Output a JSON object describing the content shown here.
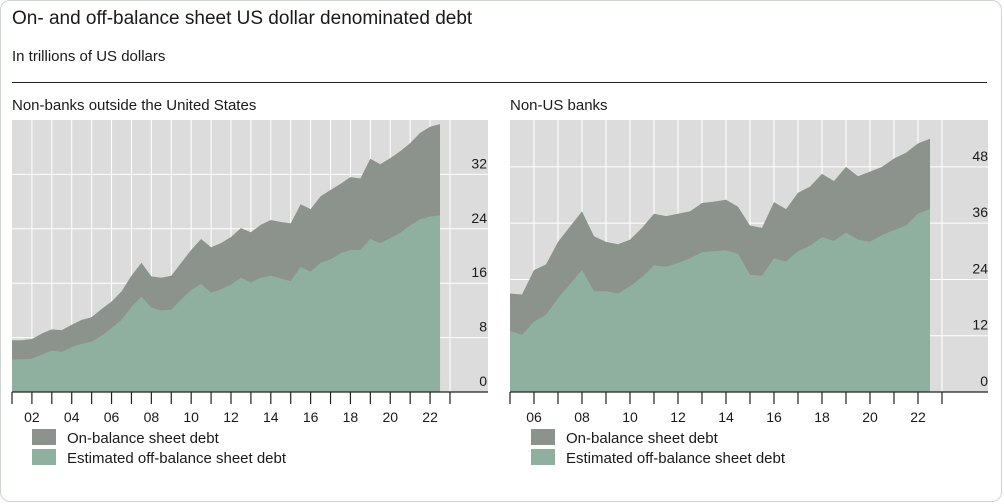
{
  "title": "On- and off-balance sheet US dollar denominated debt",
  "subtitle": "In trillions of US dollars",
  "colors": {
    "on_balance": "#8c938d",
    "off_balance": "#8fb09e",
    "plot_bg": "#dcdcdc",
    "grid": "#ffffff"
  },
  "chart_data": [
    {
      "type": "area",
      "title": "Non-banks outside the United States",
      "x": [
        2001.0,
        2001.5,
        2002.0,
        2002.5,
        2003.0,
        2003.5,
        2004.0,
        2004.5,
        2005.0,
        2005.5,
        2006.0,
        2006.5,
        2007.0,
        2007.5,
        2008.0,
        2008.5,
        2009.0,
        2009.5,
        2010.0,
        2010.5,
        2011.0,
        2011.5,
        2012.0,
        2012.5,
        2013.0,
        2013.5,
        2014.0,
        2014.5,
        2015.0,
        2015.5,
        2016.0,
        2016.5,
        2017.0,
        2017.5,
        2018.0,
        2018.5,
        2019.0,
        2019.5,
        2020.0,
        2020.5,
        2021.0,
        2021.5,
        2022.0,
        2022.5
      ],
      "xticks": [
        "02",
        "04",
        "06",
        "08",
        "10",
        "12",
        "14",
        "16",
        "18",
        "20",
        "22"
      ],
      "xtick_values": [
        2002,
        2004,
        2006,
        2008,
        2010,
        2012,
        2014,
        2016,
        2018,
        2020,
        2022
      ],
      "xlim": [
        2001.0,
        2022.8
      ],
      "ylim": [
        0,
        40
      ],
      "yticks": [
        0,
        8,
        16,
        24,
        32
      ],
      "series": [
        {
          "name": "On-balance sheet debt",
          "values": [
            7.6,
            7.6,
            7.8,
            8.6,
            9.2,
            9.1,
            9.9,
            10.6,
            11.0,
            12.2,
            13.3,
            14.8,
            17.1,
            19.0,
            17.0,
            16.8,
            17.1,
            19.0,
            20.9,
            22.5,
            21.3,
            21.9,
            22.8,
            24.1,
            23.5,
            24.6,
            25.3,
            25.0,
            24.8,
            27.6,
            26.9,
            28.8,
            29.7,
            30.6,
            31.6,
            31.4,
            34.3,
            33.5,
            34.4,
            35.4,
            36.6,
            38.1,
            39.0,
            39.4
          ]
        },
        {
          "name": "Estimated off-balance sheet debt",
          "values": [
            4.8,
            4.8,
            4.9,
            5.5,
            6.1,
            5.9,
            6.6,
            7.1,
            7.4,
            8.3,
            9.4,
            10.6,
            12.5,
            14.0,
            12.4,
            12.0,
            12.1,
            13.6,
            15.0,
            15.9,
            14.6,
            15.1,
            15.8,
            16.8,
            16.1,
            16.8,
            17.1,
            16.7,
            16.3,
            18.4,
            17.7,
            19.0,
            19.5,
            20.4,
            20.9,
            20.9,
            22.5,
            21.9,
            22.6,
            23.4,
            24.5,
            25.4,
            25.8,
            26.0
          ]
        }
      ],
      "legend": [
        "On-balance sheet debt",
        "Estimated off-balance sheet debt"
      ],
      "legend_position": "bottom"
    },
    {
      "type": "area",
      "title": "Non-US banks",
      "x": [
        2005.0,
        2005.5,
        2006.0,
        2006.5,
        2007.0,
        2007.5,
        2008.0,
        2008.5,
        2009.0,
        2009.5,
        2010.0,
        2010.5,
        2011.0,
        2011.5,
        2012.0,
        2012.5,
        2013.0,
        2013.5,
        2014.0,
        2014.5,
        2015.0,
        2015.5,
        2016.0,
        2016.5,
        2017.0,
        2017.5,
        2018.0,
        2018.5,
        2019.0,
        2019.5,
        2020.0,
        2020.5,
        2021.0,
        2021.5,
        2022.0,
        2022.5
      ],
      "xticks": [
        "06",
        "08",
        "10",
        "12",
        "14",
        "16",
        "18",
        "20",
        "22"
      ],
      "xtick_values": [
        2006,
        2008,
        2010,
        2012,
        2014,
        2016,
        2018,
        2020,
        2022
      ],
      "xlim": [
        2005.0,
        2023.0
      ],
      "ylim": [
        0,
        58
      ],
      "yticks": [
        0,
        12,
        24,
        36,
        48
      ],
      "series": [
        {
          "name": "On-balance sheet debt",
          "values": [
            21.0,
            20.8,
            26.0,
            27.2,
            32.0,
            35.3,
            38.5,
            33.2,
            32.0,
            31.5,
            32.5,
            35.0,
            38.0,
            37.5,
            38.0,
            38.5,
            40.3,
            40.6,
            41.0,
            39.5,
            35.5,
            35.0,
            40.5,
            39.0,
            42.5,
            43.8,
            46.5,
            45.0,
            48.0,
            46.0,
            47.0,
            48.0,
            49.8,
            51.0,
            53.0,
            54.0
          ]
        },
        {
          "name": "Estimated off-balance sheet debt",
          "values": [
            13.0,
            12.2,
            15.0,
            16.5,
            20.0,
            23.0,
            26.0,
            21.5,
            21.5,
            21.0,
            22.5,
            24.5,
            27.0,
            26.7,
            27.5,
            28.5,
            29.8,
            30.0,
            30.2,
            29.5,
            25.0,
            24.8,
            28.5,
            27.8,
            30.0,
            31.2,
            33.0,
            32.2,
            34.0,
            32.5,
            32.0,
            33.5,
            34.5,
            35.5,
            38.0,
            39.0
          ]
        }
      ],
      "legend": [
        "On-balance sheet debt",
        "Estimated off-balance sheet debt"
      ],
      "legend_position": "bottom"
    }
  ]
}
